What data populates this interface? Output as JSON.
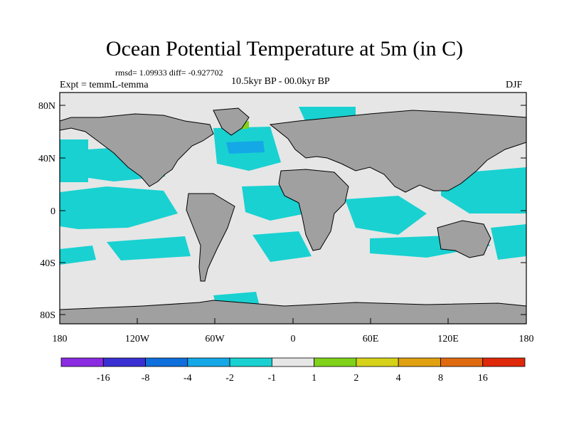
{
  "title": "Ocean Potential Temperature at 5m (in C)",
  "stats": "rmsd= 1.09933 diff= -0.927702",
  "left_label": "Expt = temmL-temma",
  "center_label": "10.5kyr BP - 00.0kyr BP",
  "season": "DJF",
  "lat_ticks": [
    "80N",
    "40N",
    "0",
    "40S",
    "80S"
  ],
  "lon_ticks": [
    "180",
    "120W",
    "60W",
    "0",
    "60E",
    "120E",
    "180"
  ],
  "colorbar": {
    "colors": [
      "#8a2be2",
      "#3a2fd2",
      "#0f6fdc",
      "#14a8e6",
      "#19d1d1",
      "#e6e6e6",
      "#80d21a",
      "#d6d21a",
      "#e0a010",
      "#e06a10",
      "#e0280a"
    ],
    "labels": [
      "-16",
      "-8",
      "-4",
      "-2",
      "-1",
      "1",
      "2",
      "4",
      "8",
      "16"
    ]
  },
  "palette": {
    "ocean": "#e6e6e6",
    "land": "#a0a0a0",
    "cool": "#19d1d1",
    "cooler": "#14a8e6",
    "coolest": "#0f6fdc",
    "warm": "#80d21a"
  }
}
